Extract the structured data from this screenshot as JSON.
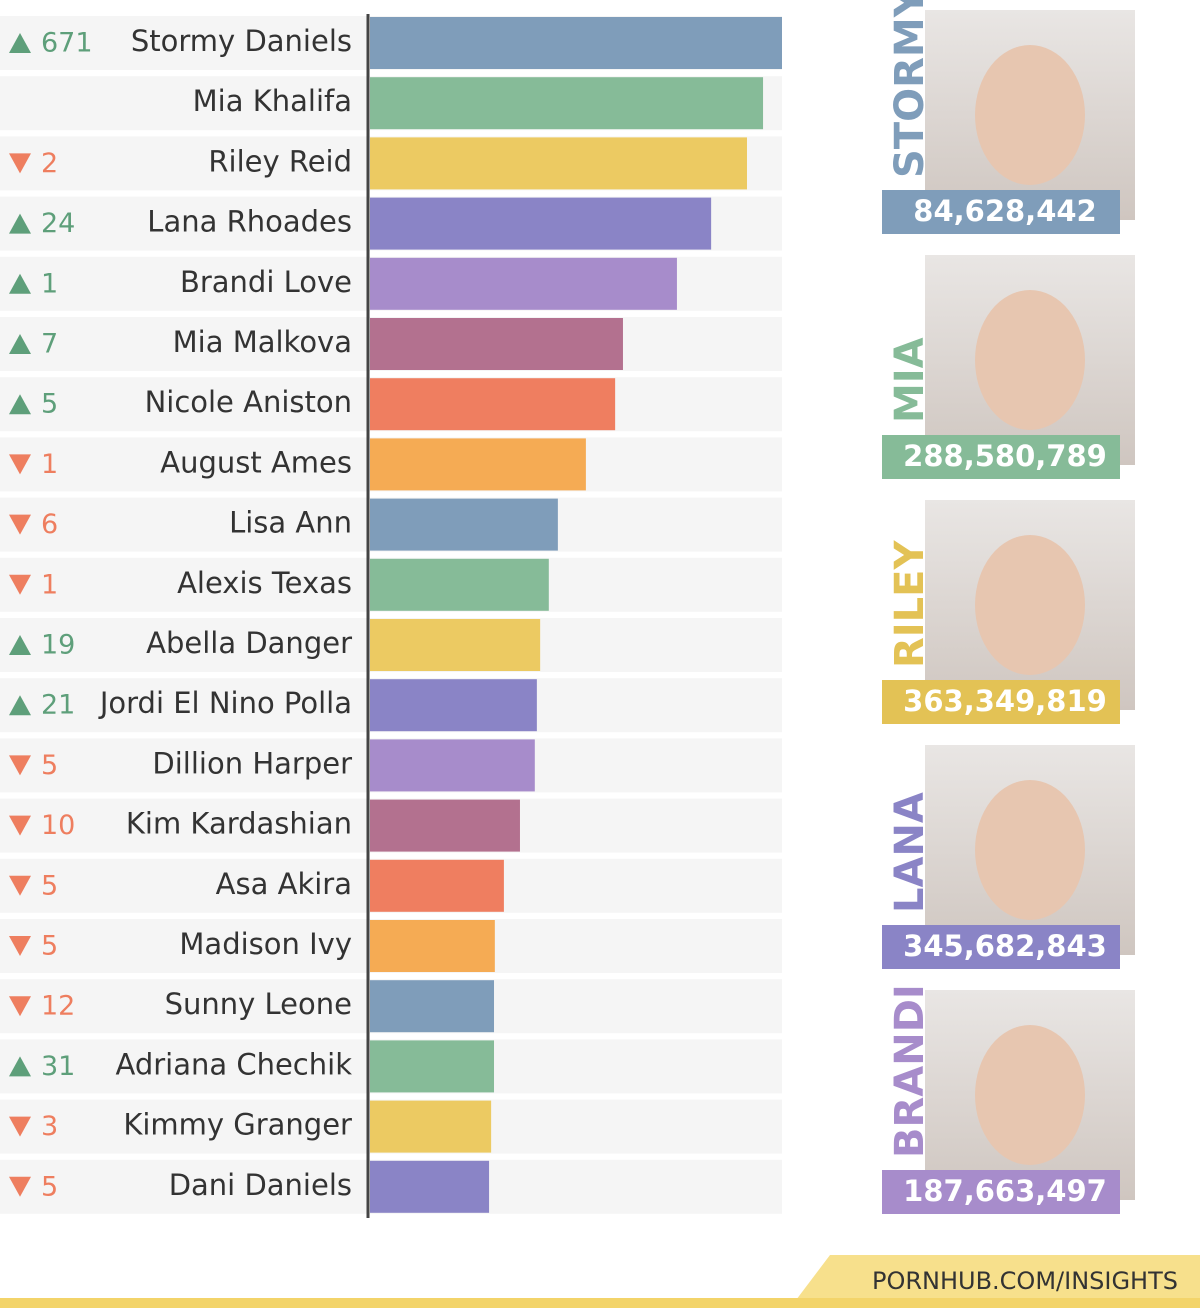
{
  "chart_data": {
    "type": "bar",
    "orientation": "horizontal",
    "categories": [
      "Stormy Daniels",
      "Mia Khalifa",
      "Riley Reid",
      "Lana Rhoades",
      "Brandi Love",
      "Mia Malkova",
      "Nicole Aniston",
      "August Ames",
      "Lisa Ann",
      "Alexis Texas",
      "Abella Danger",
      "Jordi El Nino Polla",
      "Dillion Harper",
      "Kim Kardashian",
      "Asa Akira",
      "Madison Ivy",
      "Sunny Leone",
      "Adriana Chechik",
      "Kimmy Granger",
      "Dani Daniels"
    ],
    "values": [
      100,
      95.4,
      91.5,
      82.8,
      74.5,
      61.4,
      59.5,
      52.4,
      45.6,
      43.4,
      41.3,
      40.5,
      40.0,
      36.4,
      32.5,
      30.3,
      30.1,
      30.1,
      29.4,
      28.9
    ],
    "palette": [
      "#7f9dba",
      "#86bb98",
      "#ecca62",
      "#8a84c6",
      "#a78ccb",
      "#b3718f",
      "#ef7e60",
      "#f5ab54"
    ],
    "rank_changes": [
      {
        "direction": "up",
        "value": 671
      },
      null,
      {
        "direction": "down",
        "value": 2
      },
      {
        "direction": "up",
        "value": 24
      },
      {
        "direction": "up",
        "value": 1
      },
      {
        "direction": "up",
        "value": 7
      },
      {
        "direction": "up",
        "value": 5
      },
      {
        "direction": "down",
        "value": 1
      },
      {
        "direction": "down",
        "value": 6
      },
      {
        "direction": "down",
        "value": 1
      },
      {
        "direction": "up",
        "value": 19
      },
      {
        "direction": "up",
        "value": 21
      },
      {
        "direction": "down",
        "value": 5
      },
      {
        "direction": "down",
        "value": 10
      },
      {
        "direction": "down",
        "value": 5
      },
      {
        "direction": "down",
        "value": 5
      },
      {
        "direction": "down",
        "value": 12
      },
      {
        "direction": "up",
        "value": 31
      },
      {
        "direction": "down",
        "value": 3
      },
      {
        "direction": "down",
        "value": 5
      }
    ],
    "highlights": [
      {
        "name": "STORMY",
        "value": 84628442,
        "value_label": "84,628,442",
        "color": "#7f9dba"
      },
      {
        "name": "MIA",
        "value": 288580789,
        "value_label": "288,580,789",
        "color": "#86bb98"
      },
      {
        "name": "RILEY",
        "value": 363349819,
        "value_label": "363,349,819",
        "color": "#e3c255"
      },
      {
        "name": "LANA",
        "value": 345682843,
        "value_label": "345,682,843",
        "color": "#8a84c6"
      },
      {
        "name": "BRANDI",
        "value": 187663497,
        "value_label": "187,663,497",
        "color": "#a78ccb"
      }
    ],
    "source": "PORNHUB.COM/INSIGHTS"
  }
}
